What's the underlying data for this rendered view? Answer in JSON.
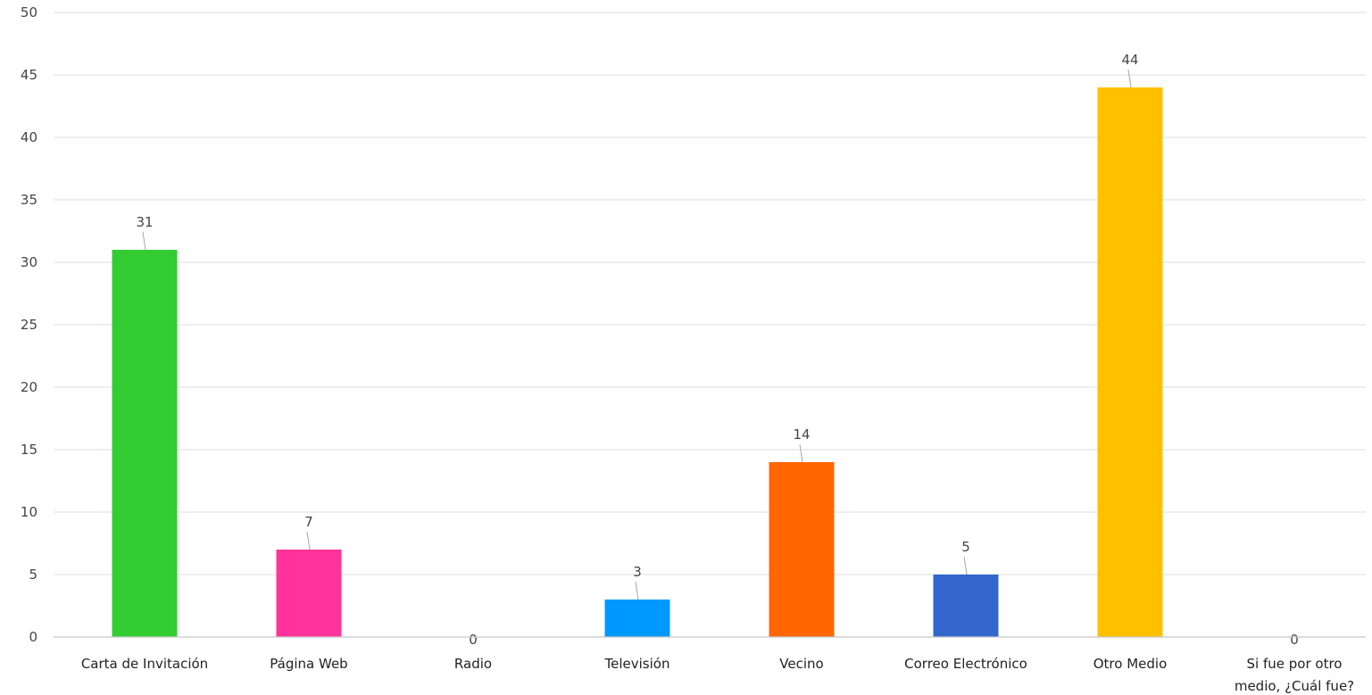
{
  "chart_data": {
    "type": "bar",
    "categories": [
      [
        "Carta de Invitación"
      ],
      [
        "Página Web"
      ],
      [
        "Radio"
      ],
      [
        "Televisión"
      ],
      [
        "Vecino"
      ],
      [
        "Correo Electrónico"
      ],
      [
        "Otro Medio"
      ],
      [
        "Si fue por otro",
        "medio, ¿Cuál fue?"
      ]
    ],
    "values": [
      31,
      7,
      0,
      3,
      14,
      5,
      44,
      0
    ],
    "data_labels": [
      "31",
      "7",
      "0",
      "3",
      "14",
      "5",
      "44",
      "0"
    ],
    "colors": [
      "#33cc33",
      "#ff3399",
      "#999999",
      "#0099ff",
      "#ff6600",
      "#3366cc",
      "#ffc000",
      "#999999"
    ],
    "ylim": [
      0,
      50
    ],
    "yticks": [
      0,
      5,
      10,
      15,
      20,
      25,
      30,
      35,
      40,
      45,
      50
    ],
    "grid": true,
    "title": "",
    "xlabel": "",
    "ylabel": ""
  }
}
